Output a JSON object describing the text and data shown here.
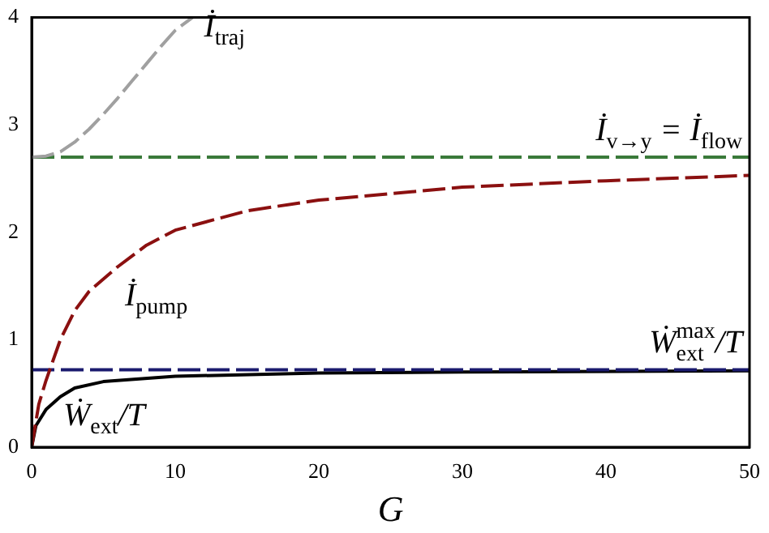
{
  "chart_data": {
    "type": "line",
    "xlabel": "G",
    "xlim": [
      0,
      50
    ],
    "xticks": [
      0,
      10,
      20,
      30,
      40,
      50
    ],
    "ylim": [
      0,
      4
    ],
    "yticks": [
      0,
      1,
      2,
      3,
      4
    ],
    "grid": false,
    "legend": false,
    "marker": "none",
    "series": [
      {
        "name": "İ$_{traj}$",
        "color": "#a0a0a0",
        "line_style": "dashed",
        "x": [
          0,
          1,
          2,
          3,
          4,
          5,
          6,
          7,
          8,
          9,
          10,
          11.2
        ],
        "values": [
          2.7,
          2.71,
          2.75,
          2.84,
          2.96,
          3.1,
          3.25,
          3.41,
          3.57,
          3.73,
          3.88,
          4.0
        ]
      },
      {
        "name": "İ$_{v→y}$ = İ$_{flow}$",
        "color": "#3a7a3a",
        "line_style": "dashed",
        "x": [
          0,
          50
        ],
        "values": [
          2.7,
          2.7
        ]
      },
      {
        "name": "İ$_{pump}$",
        "color": "#8b1010",
        "line_style": "dashed",
        "x": [
          0,
          0.5,
          1,
          2,
          3,
          4,
          6,
          8,
          10,
          15,
          20,
          25,
          30,
          40,
          50
        ],
        "values": [
          0,
          0.4,
          0.62,
          1.0,
          1.27,
          1.45,
          1.68,
          1.88,
          2.02,
          2.2,
          2.3,
          2.36,
          2.42,
          2.48,
          2.53
        ]
      },
      {
        "name": "Ẇ$^{max}$$_{ext}$/T",
        "color": "#1a1a6e",
        "line_style": "dashed",
        "x": [
          0,
          50
        ],
        "values": [
          0.72,
          0.72
        ]
      },
      {
        "name": "Ẇ$_{ext}$/T",
        "color": "#000000",
        "line_style": "solid",
        "x": [
          0,
          0.3,
          1,
          2,
          3,
          5,
          10,
          20,
          30,
          50
        ],
        "values": [
          0,
          0.2,
          0.35,
          0.47,
          0.55,
          0.61,
          0.66,
          0.69,
          0.7,
          0.71
        ]
      }
    ]
  }
}
